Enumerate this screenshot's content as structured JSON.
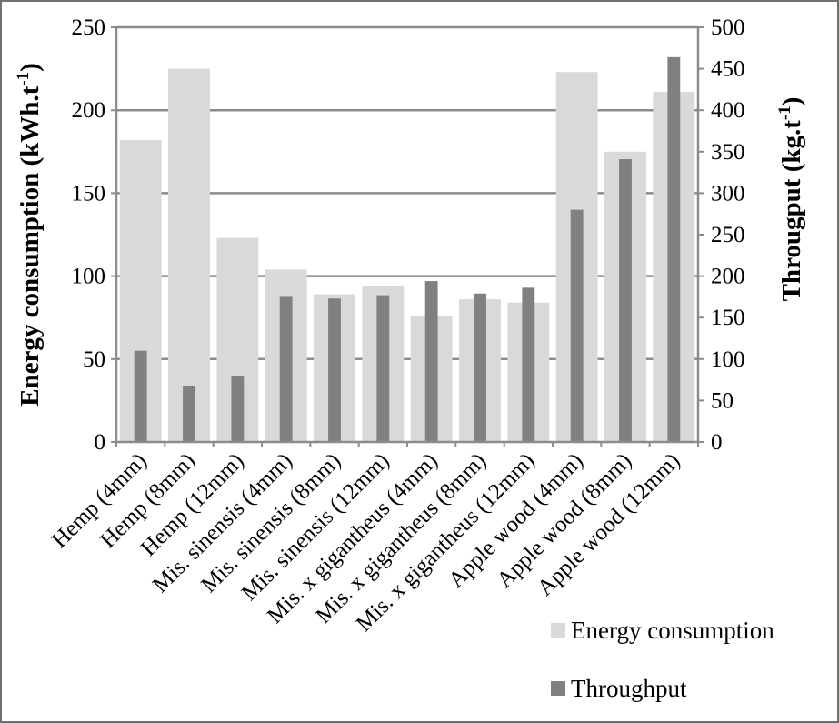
{
  "chart_data": {
    "type": "bar",
    "title": "",
    "categories": [
      "Hemp (4mm)",
      "Hemp (8mm)",
      "Hemp (12mm)",
      "Mis. sinensis (4mm)",
      "Mis. sinensis (8mm)",
      "Mis. sinensis (12mm)",
      "Mis. x gigantheus (4mm)",
      "Mis. x gigantheus (8mm)",
      "Mis. x gigantheus (12mm)",
      "Apple wood (4mm)",
      "Apple wood (8mm)",
      "Apple wood (12mm)"
    ],
    "series": [
      {
        "name": "Energy consumption",
        "axis": "left",
        "color": "#d9d9d9",
        "values": [
          182,
          225,
          123,
          104,
          89,
          94,
          76,
          86,
          84,
          223,
          175,
          211
        ]
      },
      {
        "name": "Throughput",
        "axis": "right",
        "color": "#808080",
        "values": [
          110,
          68,
          80,
          175,
          173,
          177,
          194,
          179,
          186,
          280,
          341,
          464
        ]
      }
    ],
    "ylabel_left": "Energy consumption (kWh.t",
    "ylabel_left_sup": "-1",
    "ylabel_left_end": ")",
    "ylabel_right": "Througput (kg.t",
    "ylabel_right_sup": "-1",
    "ylabel_right_end": ")",
    "ylim_left": [
      0,
      250
    ],
    "yticks_left": [
      "0",
      "50",
      "100",
      "150",
      "200",
      "250"
    ],
    "ylim_right": [
      0,
      500
    ],
    "yticks_right": [
      "0",
      "50",
      "100",
      "150",
      "200",
      "250",
      "300",
      "350",
      "400",
      "450",
      "500"
    ],
    "grid": true,
    "legend_position": "bottom-right"
  }
}
